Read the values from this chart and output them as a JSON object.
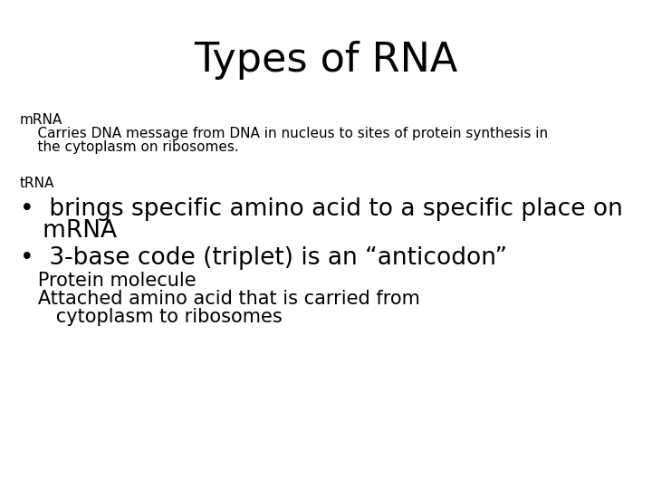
{
  "title": "Types of RNA",
  "title_fontsize": 32,
  "background_color": "#ffffff",
  "text_color": "#000000",
  "mrna_label": "mRNA",
  "mrna_label_fontsize": 11,
  "mrna_line1": "    Carries DNA message from DNA in nucleus to sites of protein synthesis in",
  "mrna_line2": "    the cytoplasm on ribosomes.",
  "mrna_body_fontsize": 11,
  "trna_label": "tRNA",
  "trna_label_fontsize": 11,
  "bullet1_line1": "•  brings specific amino acid to a specific place on",
  "bullet1_line2": "   mRNA",
  "bullet1_fontsize": 19,
  "bullet2": "•  3-base code (triplet) is an “anticodon”",
  "bullet2_fontsize": 19,
  "sub1": "   Protein molecule",
  "sub1_fontsize": 15,
  "sub2_line1": "   Attached amino acid that is carried from",
  "sub2_line2": "      cytoplasm to ribosomes",
  "sub2_fontsize": 15,
  "font": "DejaVu Sans"
}
